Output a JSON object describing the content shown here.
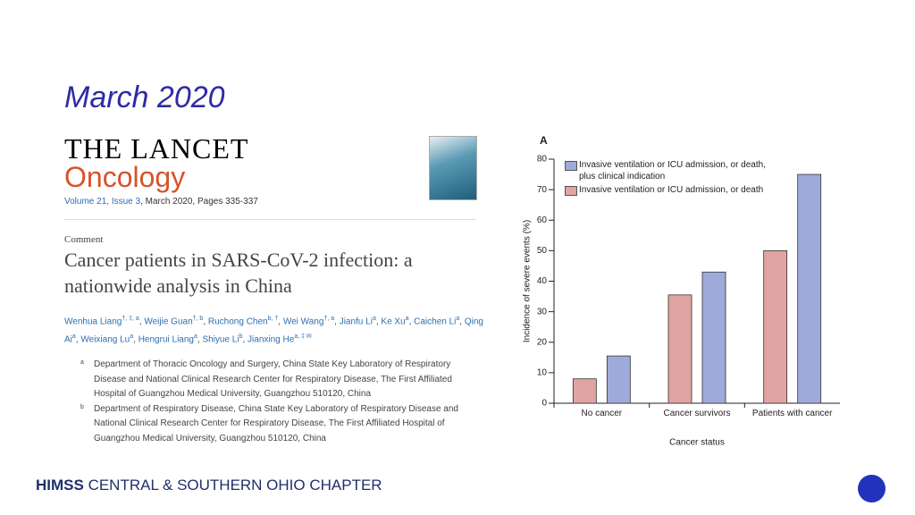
{
  "slide_title": "March 2020",
  "article": {
    "journal": "THE LANCET",
    "journal_sub": "Oncology",
    "volume_link": "Volume 21, Issue 3",
    "volume_rest": ", March 2020, Pages 335-337",
    "section": "Comment",
    "title": "Cancer patients in SARS-CoV-2 infection: a nationwide analysis in China",
    "author_separator": ", ",
    "authors": [
      {
        "name": "Wenhua Liang",
        "sup": "†, ‡, a"
      },
      {
        "name": "Weijie Guan",
        "sup": "†, b"
      },
      {
        "name": "Ruchong Chen",
        "sup": "b, †"
      },
      {
        "name": "Wei Wang",
        "sup": "†, a"
      },
      {
        "name": "Jianfu Li",
        "sup": "a"
      },
      {
        "name": "Ke Xu",
        "sup": "a"
      },
      {
        "name": "Caichen Li",
        "sup": "a"
      },
      {
        "name": "Qing Ai",
        "sup": "a"
      },
      {
        "name": "Weixiang Lu",
        "sup": "a"
      },
      {
        "name": "Hengrui Liang",
        "sup": "a"
      },
      {
        "name": "Shiyue Li",
        "sup": "b"
      },
      {
        "name": "Jianxing He",
        "sup": "a, ‡ ✉"
      }
    ],
    "affiliations": [
      {
        "label": "a",
        "text": "Department of Thoracic Oncology and Surgery, China State Key Laboratory of Respiratory Disease and National Clinical Research Center for Respiratory Disease, The First Affiliated Hospital of Guangzhou Medical University, Guangzhou 510120, China"
      },
      {
        "label": "b",
        "text": "Department of Respiratory Disease, China State Key Laboratory of Respiratory Disease and National Clinical Research Center for Respiratory Disease, The First Affiliated Hospital of Guangzhou Medical University, Guangzhou 510120, China"
      }
    ]
  },
  "chart_data": {
    "type": "bar",
    "panel_label": "A",
    "xlabel": "Cancer status",
    "ylabel": "Incidence of severe events (%)",
    "categories": [
      "No cancer",
      "Cancer survivors",
      "Patients with cancer"
    ],
    "series": [
      {
        "name": "Invasive ventilation or ICU admission, or death",
        "color": "#e0a5a2",
        "values": [
          8,
          35.5,
          50
        ]
      },
      {
        "name": "Invasive ventilation or ICU admission, or death, plus clinical indication",
        "color": "#9eabda",
        "values": [
          15.5,
          43,
          75
        ]
      }
    ],
    "ylim": [
      0,
      80
    ],
    "yticks": [
      0,
      10,
      20,
      30,
      40,
      50,
      60,
      70,
      80
    ]
  },
  "footer": {
    "brand": "HIMSS",
    "chapter": " CENTRAL & SOUTHERN OHIO CHAPTER"
  }
}
